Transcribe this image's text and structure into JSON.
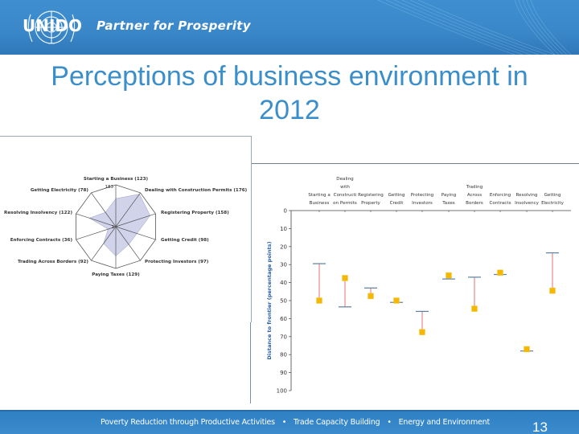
{
  "header": {
    "logo_text": "UNIDO",
    "tagline": "Partner for Prosperity",
    "brand_color": "#3a87c8"
  },
  "slide": {
    "title_line1": "Perceptions of business environment in",
    "title_line2": "2012",
    "title_color": "#3a8ec9",
    "page_number": "13"
  },
  "footer": {
    "items": [
      "Poverty Reduction through Productive Activities",
      "Trade Capacity Building",
      "Energy and Environment"
    ],
    "separator": "•"
  },
  "chart_data": [
    {
      "type": "radar",
      "title": "",
      "scale_min": 1,
      "scale_max": 183,
      "scale_labels": [
        "183",
        "1"
      ],
      "note": "Rank (lower = better); shape plotted inverted with rank 1 at center",
      "categories": [
        "Starting a Business (123)",
        "Dealing with Construction Permits (176)",
        "Registering Property (158)",
        "Getting Credit (98)",
        "Protecting Investors (97)",
        "Paying Taxes (129)",
        "Trading Across Borders (92)",
        "Enforcing Contracts (36)",
        "Resolving Insolvency (122)",
        "Getting Electricity (78)"
      ],
      "values": [
        123,
        176,
        158,
        98,
        97,
        129,
        92,
        36,
        122,
        78
      ],
      "fill_color": "#c9cbe8",
      "line_color": "#555555"
    },
    {
      "type": "scatter",
      "title": "",
      "xlabel": "",
      "ylabel": "Distance to frontier (percentage points)",
      "ylim": [
        0,
        100
      ],
      "yticks": [
        0,
        10,
        20,
        30,
        40,
        50,
        60,
        70,
        80,
        90,
        100
      ],
      "y_inverted": true,
      "categories": [
        "Starting a Business",
        "Dealing with Constructi on Permits",
        "Registering Property",
        "Getting Credit",
        "Protecting Investors",
        "Paying Taxes",
        "Trading Across Borders",
        "Enforcing Contracts",
        "Resolving Insolvency",
        "Getting Electricity"
      ],
      "category_lines": [
        [
          "Starting a",
          "Business"
        ],
        [
          "Dealing",
          "with",
          "Constructi",
          "on Permits"
        ],
        [
          "Registering",
          "Property"
        ],
        [
          "Getting",
          "Credit"
        ],
        [
          "Protecting",
          "Investors"
        ],
        [
          "Paying",
          "Taxes"
        ],
        [
          "Trading",
          "Across",
          "Borders"
        ],
        [
          "Enforcing",
          "Contracts"
        ],
        [
          "Resolving",
          "Insolvency"
        ],
        [
          "Getting",
          "Electricity"
        ]
      ],
      "series": [
        {
          "name": "Marker (square)",
          "color": "#f5b800",
          "values": [
            50,
            37.5,
            47.5,
            50,
            67.5,
            36,
            54.5,
            34.5,
            77,
            44.5
          ]
        },
        {
          "name": "Bar (tick)",
          "color": "#5a7f9e",
          "values": [
            29.5,
            53.5,
            43,
            51,
            56,
            38,
            37,
            35.5,
            78,
            23.5
          ]
        }
      ],
      "connector_color": "#e88a8a",
      "ylabel_color": "#2a5fa8"
    }
  ]
}
